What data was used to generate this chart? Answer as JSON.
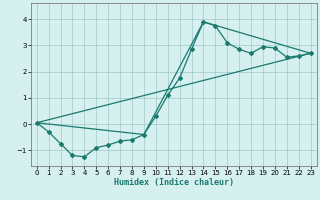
{
  "xlabel": "Humidex (Indice chaleur)",
  "bg_color": "#d6f0f0",
  "line_color": "#1a7a6e",
  "grid_color": "#a0c8c8",
  "xlim": [
    -0.5,
    23.5
  ],
  "ylim": [
    -1.6,
    4.6
  ],
  "xticks": [
    0,
    1,
    2,
    3,
    4,
    5,
    6,
    7,
    8,
    9,
    10,
    11,
    12,
    13,
    14,
    15,
    16,
    17,
    18,
    19,
    20,
    21,
    22,
    23
  ],
  "yticks": [
    -1,
    0,
    1,
    2,
    3,
    4
  ],
  "line1_x": [
    0,
    1,
    2,
    3,
    4,
    5,
    6,
    7,
    8,
    9,
    10,
    11,
    12,
    13,
    14,
    15,
    16,
    17,
    18,
    19,
    20,
    21,
    22,
    23
  ],
  "line1_y": [
    0.05,
    -0.3,
    -0.75,
    -1.2,
    -1.25,
    -0.9,
    -0.8,
    -0.65,
    -0.6,
    -0.4,
    0.3,
    1.1,
    1.75,
    2.85,
    3.9,
    3.75,
    3.1,
    2.85,
    2.7,
    2.95,
    2.9,
    2.55,
    2.6,
    2.7
  ],
  "line2_x": [
    0,
    9,
    14,
    23
  ],
  "line2_y": [
    0.05,
    -0.4,
    3.9,
    2.7
  ],
  "line3_x": [
    0,
    23
  ],
  "line3_y": [
    0.05,
    2.7
  ],
  "xlabel_fontsize": 6.0,
  "tick_fontsize": 5.0
}
